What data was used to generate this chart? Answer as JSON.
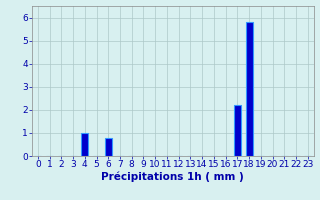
{
  "hours": [
    0,
    1,
    2,
    3,
    4,
    5,
    6,
    7,
    8,
    9,
    10,
    11,
    12,
    13,
    14,
    15,
    16,
    17,
    18,
    19,
    20,
    21,
    22,
    23
  ],
  "values": [
    0,
    0,
    0,
    0,
    1.0,
    0,
    0.8,
    0,
    0,
    0,
    0,
    0,
    0,
    0,
    0,
    0,
    0,
    2.2,
    5.8,
    0,
    0,
    0,
    0,
    0
  ],
  "bar_color": "#0000cc",
  "bar_edge_color": "#3399ff",
  "background_color": "#d8f0f0",
  "grid_color": "#adc8c8",
  "xlabel": "Précipitations 1h ( mm )",
  "xlabel_color": "#0000aa",
  "xlabel_fontsize": 7.5,
  "tick_color": "#0000aa",
  "tick_fontsize": 6.5,
  "ytick_values": [
    0,
    1,
    2,
    3,
    4,
    5,
    6
  ],
  "ylim": [
    0,
    6.5
  ],
  "xlim": [
    -0.5,
    23.5
  ]
}
